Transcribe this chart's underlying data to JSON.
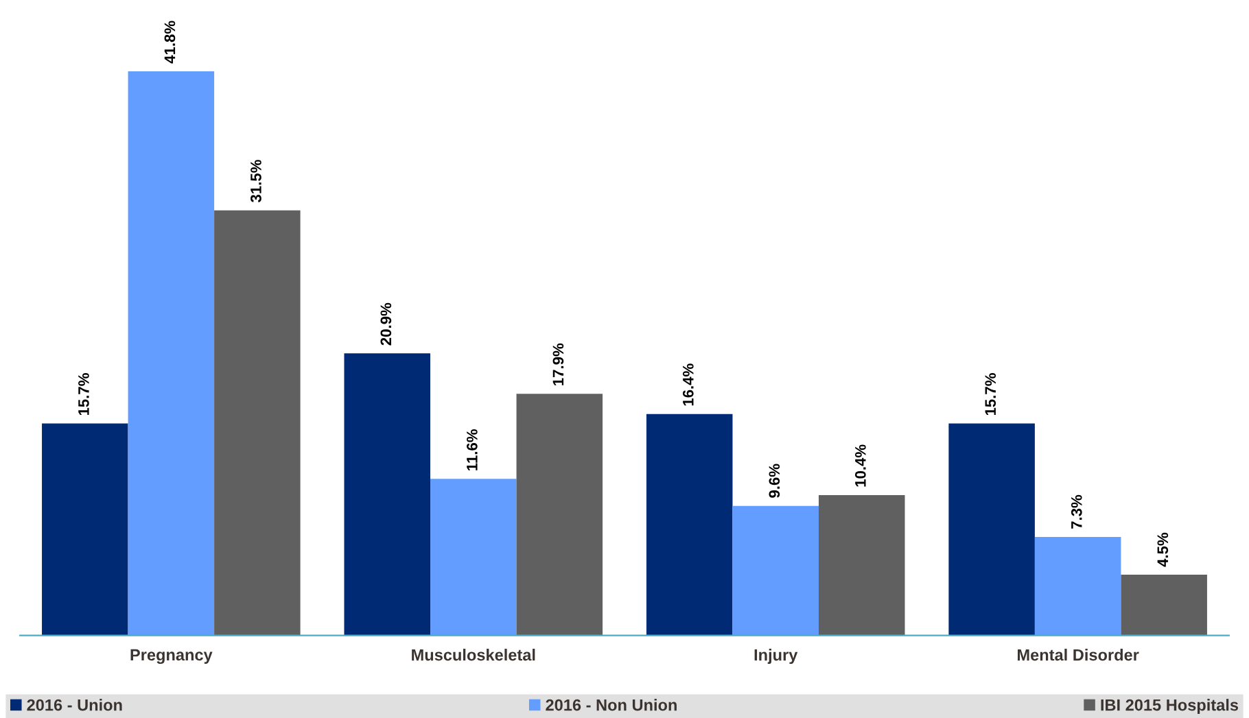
{
  "chart_data": {
    "type": "bar",
    "categories": [
      "Pregnancy",
      "Musculoskeletal",
      "Injury",
      "Mental Disorder"
    ],
    "series": [
      {
        "name": "2016 - Union",
        "color": "#002a74",
        "values": [
          15.7,
          20.9,
          16.4,
          15.7
        ],
        "value_labels": [
          "15.7%",
          "20.9%",
          "16.4%",
          "15.7%"
        ]
      },
      {
        "name": "2016 - Non Union",
        "color": "#629dff",
        "values": [
          41.8,
          11.6,
          9.6,
          7.3
        ],
        "value_labels": [
          "41.8%",
          "11.6%",
          "9.6%",
          "7.3%"
        ]
      },
      {
        "name": "IBI 2015 Hospitals",
        "color": "#606060",
        "values": [
          31.5,
          17.9,
          10.4,
          4.5
        ],
        "value_labels": [
          "31.5%",
          "17.9%",
          "10.4%",
          "4.5%"
        ]
      }
    ],
    "legend": "bottom",
    "grid": false
  }
}
